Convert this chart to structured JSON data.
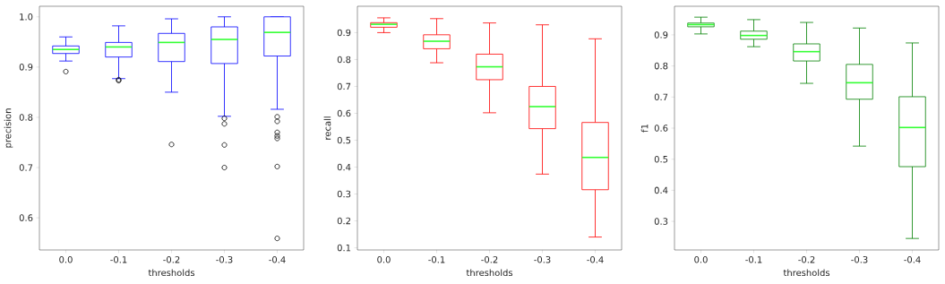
{
  "chart_data": [
    {
      "type": "box",
      "xlabel": "thresholds",
      "ylabel": "precision",
      "categories": [
        "0.0",
        "-0.1",
        "-0.2",
        "-0.3",
        "-0.4"
      ],
      "ylim": [
        0.536,
        1.021
      ],
      "yticks": [
        0.6,
        0.7,
        0.8,
        0.9,
        {
          "value": 1.0,
          "label": "1.0"
        }
      ],
      "series": [
        {
          "color": "#0000ff",
          "boxes": [
            {
              "low": 0.912,
              "q1": 0.927,
              "median": 0.935,
              "q3": 0.942,
              "high": 0.96,
              "outliers": [
                0.891
              ]
            },
            {
              "low": 0.877,
              "q1": 0.92,
              "median": 0.94,
              "q3": 0.949,
              "high": 0.982,
              "outliers": [
                0.875,
                0.873
              ]
            },
            {
              "low": 0.85,
              "q1": 0.911,
              "median": 0.949,
              "q3": 0.967,
              "high": 0.996,
              "outliers": [
                0.746
              ]
            },
            {
              "low": 0.802,
              "q1": 0.907,
              "median": 0.955,
              "q3": 0.98,
              "high": 1.0,
              "outliers": [
                0.798,
                0.787,
                0.745,
                0.7
              ]
            },
            {
              "low": 0.816,
              "q1": 0.922,
              "median": 0.969,
              "q3": 1.0,
              "high": 1.0,
              "outliers": [
                0.801,
                0.792,
                0.77,
                0.763,
                0.758,
                0.702,
                0.559
              ]
            }
          ]
        }
      ]
    },
    {
      "type": "box",
      "xlabel": "thresholds",
      "ylabel": "recall",
      "categories": [
        "0.0",
        "-0.1",
        "-0.2",
        "-0.3",
        "-0.4"
      ],
      "ylim": [
        0.092,
        0.998
      ],
      "yticks": [
        0.1,
        0.2,
        0.3,
        0.4,
        0.5,
        0.6,
        0.7,
        0.8,
        0.9
      ],
      "series": [
        {
          "color": "#ff0000",
          "boxes": [
            {
              "low": 0.9,
              "q1": 0.92,
              "median": 0.931,
              "q3": 0.937,
              "high": 0.955
            },
            {
              "low": 0.788,
              "q1": 0.84,
              "median": 0.868,
              "q3": 0.892,
              "high": 0.952
            },
            {
              "low": 0.602,
              "q1": 0.725,
              "median": 0.773,
              "q3": 0.82,
              "high": 0.936
            },
            {
              "low": 0.374,
              "q1": 0.543,
              "median": 0.625,
              "q3": 0.7,
              "high": 0.929
            },
            {
              "low": 0.14,
              "q1": 0.316,
              "median": 0.436,
              "q3": 0.566,
              "high": 0.877
            }
          ]
        }
      ]
    },
    {
      "type": "box",
      "xlabel": "thresholds",
      "ylabel": "f1",
      "categories": [
        "0.0",
        "-0.1",
        "-0.2",
        "-0.3",
        "-0.4"
      ],
      "ylim": [
        0.208,
        0.992
      ],
      "yticks": [
        0.3,
        0.4,
        0.5,
        0.6,
        0.7,
        0.8,
        0.9
      ],
      "series": [
        {
          "color": "#008000",
          "boxes": [
            {
              "low": 0.903,
              "q1": 0.926,
              "median": 0.933,
              "q3": 0.938,
              "high": 0.957
            },
            {
              "low": 0.862,
              "q1": 0.886,
              "median": 0.898,
              "q3": 0.912,
              "high": 0.949
            },
            {
              "low": 0.744,
              "q1": 0.816,
              "median": 0.846,
              "q3": 0.871,
              "high": 0.94
            },
            {
              "low": 0.542,
              "q1": 0.693,
              "median": 0.746,
              "q3": 0.805,
              "high": 0.922
            },
            {
              "low": 0.245,
              "q1": 0.476,
              "median": 0.602,
              "q3": 0.701,
              "high": 0.874
            }
          ]
        }
      ]
    }
  ]
}
